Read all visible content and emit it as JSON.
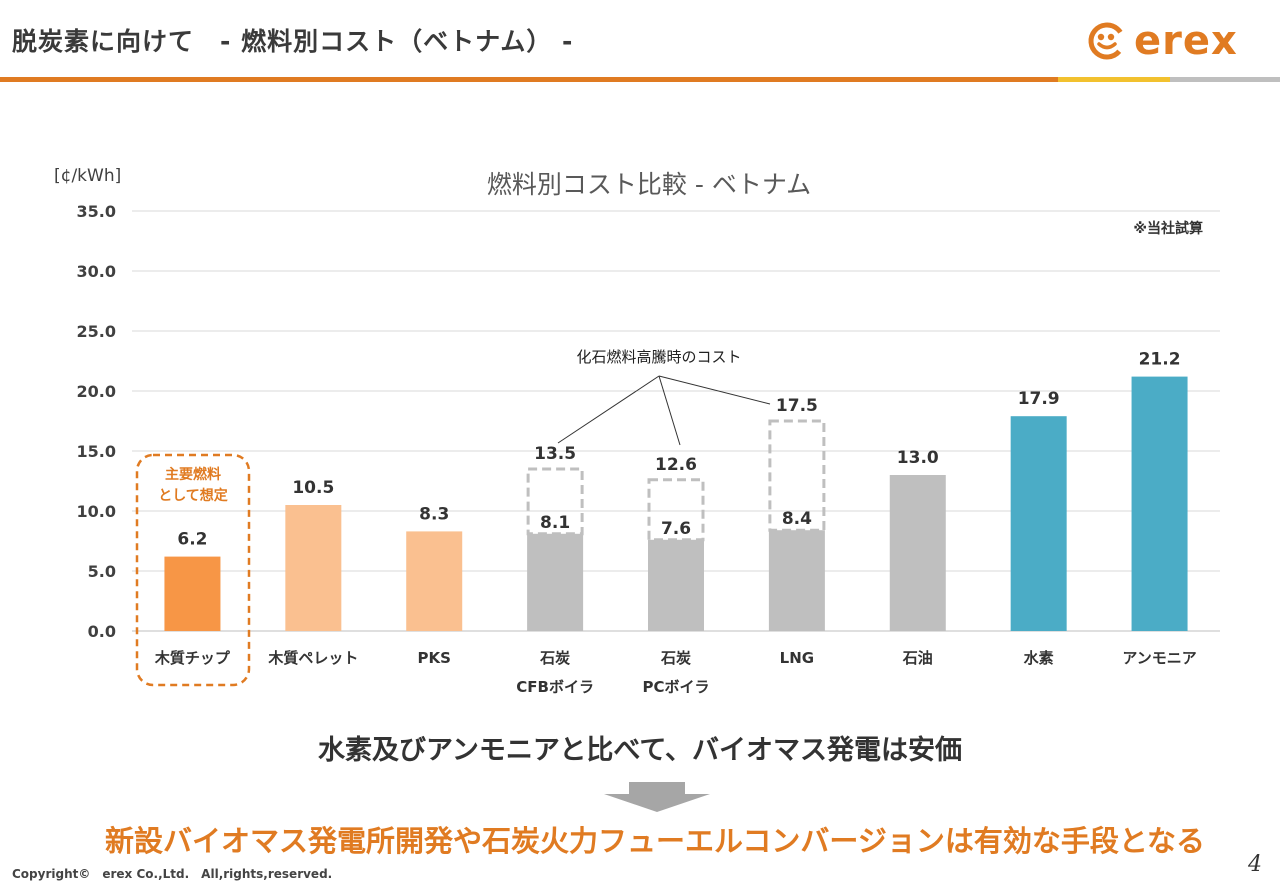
{
  "header": {
    "title": "脱炭素に向けて　- 燃料別コスト（ベトナム） -",
    "logo_text": "erex"
  },
  "colors": {
    "accent_orange": "#E07B22",
    "accent_yellow": "#F2C12E",
    "bar_wood_chip": "#F79646",
    "bar_biomass_light": "#FAC090",
    "bar_fossil": "#BFBFBF",
    "bar_hydrogen": "#4BACC6"
  },
  "chart_data": {
    "type": "bar",
    "title": "燃料別コスト比較 - ベトナム",
    "ylabel": "[¢/kWh]",
    "ylim": [
      0,
      35
    ],
    "yticks": [
      "0.0",
      "5.0",
      "10.0",
      "15.0",
      "20.0",
      "25.0",
      "30.0",
      "35.0"
    ],
    "grid": true,
    "note": "※当社試算",
    "categories": [
      {
        "line1": "木質チップ",
        "line2": ""
      },
      {
        "line1": "木質ペレット",
        "line2": ""
      },
      {
        "line1": "PKS",
        "line2": ""
      },
      {
        "line1": "石炭",
        "line2": "CFBボイラ"
      },
      {
        "line1": "石炭",
        "line2": "PCボイラ"
      },
      {
        "line1": "LNG",
        "line2": ""
      },
      {
        "line1": "石油",
        "line2": ""
      },
      {
        "line1": "水素",
        "line2": ""
      },
      {
        "line1": "アンモニア",
        "line2": ""
      }
    ],
    "values": [
      6.2,
      10.5,
      8.3,
      8.1,
      7.6,
      8.4,
      13.0,
      17.9,
      21.2
    ],
    "value_labels": [
      "6.2",
      "10.5",
      "8.3",
      "8.1",
      "7.6",
      "8.4",
      "13.0",
      "17.9",
      "21.2"
    ],
    "bar_colors": [
      "#F79646",
      "#FAC090",
      "#FAC090",
      "#BFBFBF",
      "#BFBFBF",
      "#BFBFBF",
      "#BFBFBF",
      "#4BACC6",
      "#4BACC6"
    ],
    "high_cost": [
      null,
      null,
      null,
      13.5,
      12.6,
      17.5,
      null,
      null,
      null
    ],
    "high_cost_labels": [
      "",
      "",
      "",
      "13.5",
      "12.6",
      "17.5",
      "",
      "",
      ""
    ],
    "high_cost_annotation": "化石燃料高騰時のコスト",
    "main_fuel_annotation": [
      "主要燃料",
      "として想定"
    ]
  },
  "messages": {
    "conclusion": "水素及びアンモニアと比べて、バイオマス発電は安価",
    "action": "新設バイオマス発電所開発や石炭火力フューエルコンバージョンは有効な手段となる"
  },
  "footer": {
    "copyright": "Copyright©　erex Co.,Ltd.　All,rights,reserved.",
    "page_number": "4"
  }
}
